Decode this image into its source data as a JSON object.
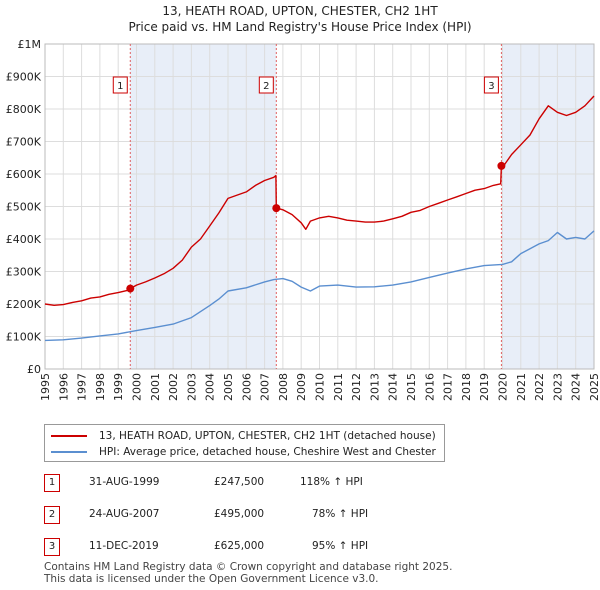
{
  "title_line1": "13, HEATH ROAD, UPTON, CHESTER, CH2 1HT",
  "title_line2": "Price paid vs. HM Land Registry's House Price Index (HPI)",
  "legend": {
    "property": "13, HEATH ROAD, UPTON, CHESTER, CH2 1HT (detached house)",
    "hpi": "HPI: Average price, detached house, Cheshire West and Chester"
  },
  "colors": {
    "property": "#cc0000",
    "hpi": "#5b8fd0",
    "shade": "#e8eef8"
  },
  "sales": [
    {
      "num": "1",
      "date": "31-AUG-1999",
      "price": "£247,500",
      "hpi_pct": "118% ↑ HPI",
      "x": 1999.66,
      "y": 247500
    },
    {
      "num": "2",
      "date": "24-AUG-2007",
      "price": "£495,000",
      "hpi_pct": "78% ↑ HPI",
      "x": 2007.64,
      "y": 495000
    },
    {
      "num": "3",
      "date": "11-DEC-2019",
      "price": "£625,000",
      "hpi_pct": "95% ↑ HPI",
      "x": 2019.94,
      "y": 625000
    }
  ],
  "footer": {
    "line1": "Contains HM Land Registry data © Crown copyright and database right 2025.",
    "line2": "This data is licensed under the Open Government Licence v3.0."
  },
  "chart_data": {
    "type": "line",
    "title": "Price paid vs. HM Land Registry's House Price Index (HPI)",
    "xlim": [
      1995,
      2025
    ],
    "ylim": [
      0,
      1000000
    ],
    "x_ticks": [
      1995,
      1996,
      1997,
      1998,
      1999,
      2000,
      2001,
      2002,
      2003,
      2004,
      2005,
      2006,
      2007,
      2008,
      2009,
      2010,
      2011,
      2012,
      2013,
      2014,
      2015,
      2016,
      2017,
      2018,
      2019,
      2020,
      2021,
      2022,
      2023,
      2024,
      2025
    ],
    "y_ticks": [
      0,
      100000,
      200000,
      300000,
      400000,
      500000,
      600000,
      700000,
      800000,
      900000,
      1000000
    ],
    "y_tick_labels": [
      "£0",
      "£100K",
      "£200K",
      "£300K",
      "£400K",
      "£500K",
      "£600K",
      "£700K",
      "£800K",
      "£900K",
      "£1M"
    ],
    "shaded_ranges": [
      [
        1999.66,
        2007.64
      ],
      [
        2019.94,
        2025
      ]
    ],
    "series": [
      {
        "name": "13, HEATH ROAD, UPTON, CHESTER, CH2 1HT (detached house)",
        "x": [
          1995,
          1995.5,
          1996,
          1996.5,
          1997,
          1997.5,
          1998,
          1998.5,
          1999,
          1999.5,
          1999.66,
          2000,
          2000.5,
          2001,
          2001.5,
          2002,
          2002.5,
          2003,
          2003.5,
          2004,
          2004.5,
          2005,
          2005.5,
          2006,
          2006.5,
          2007,
          2007.5,
          2007.62,
          2007.64,
          2008,
          2008.5,
          2009,
          2009.25,
          2009.5,
          2010,
          2010.5,
          2011,
          2011.5,
          2012,
          2012.5,
          2013,
          2013.5,
          2014,
          2014.5,
          2015,
          2015.5,
          2016,
          2016.5,
          2017,
          2017.5,
          2018,
          2018.5,
          2019,
          2019.5,
          2019.9,
          2019.94,
          2020,
          2020.5,
          2021,
          2021.5,
          2022,
          2022.5,
          2023,
          2023.5,
          2024,
          2024.5,
          2025
        ],
        "values": [
          200000,
          196000,
          198000,
          205000,
          210000,
          218000,
          222000,
          230000,
          235000,
          242000,
          247500,
          258000,
          268000,
          280000,
          293000,
          310000,
          335000,
          375000,
          400000,
          440000,
          480000,
          525000,
          535000,
          545000,
          565000,
          580000,
          590000,
          595000,
          495000,
          490000,
          475000,
          450000,
          430000,
          455000,
          465000,
          470000,
          465000,
          458000,
          455000,
          452000,
          452000,
          455000,
          462000,
          470000,
          482000,
          488000,
          500000,
          510000,
          520000,
          530000,
          540000,
          550000,
          555000,
          565000,
          570000,
          625000,
          620000,
          660000,
          690000,
          720000,
          770000,
          810000,
          790000,
          780000,
          790000,
          810000,
          840000
        ]
      },
      {
        "name": "HPI: Average price, detached house, Cheshire West and Chester",
        "x": [
          1995,
          1996,
          1997,
          1998,
          1999,
          2000,
          2001,
          2002,
          2003,
          2004,
          2004.5,
          2005,
          2006,
          2007,
          2007.5,
          2008,
          2008.5,
          2009,
          2009.5,
          2010,
          2011,
          2012,
          2013,
          2014,
          2015,
          2016,
          2017,
          2018,
          2019,
          2020,
          2020.5,
          2021,
          2021.5,
          2022,
          2022.5,
          2023,
          2023.5,
          2024,
          2024.5,
          2025
        ],
        "values": [
          88000,
          90000,
          95000,
          102000,
          108000,
          118000,
          128000,
          138000,
          158000,
          195000,
          215000,
          240000,
          250000,
          268000,
          275000,
          278000,
          270000,
          252000,
          240000,
          255000,
          258000,
          252000,
          253000,
          258000,
          268000,
          282000,
          295000,
          308000,
          318000,
          322000,
          330000,
          355000,
          370000,
          385000,
          395000,
          420000,
          400000,
          405000,
          400000,
          425000
        ]
      }
    ]
  }
}
